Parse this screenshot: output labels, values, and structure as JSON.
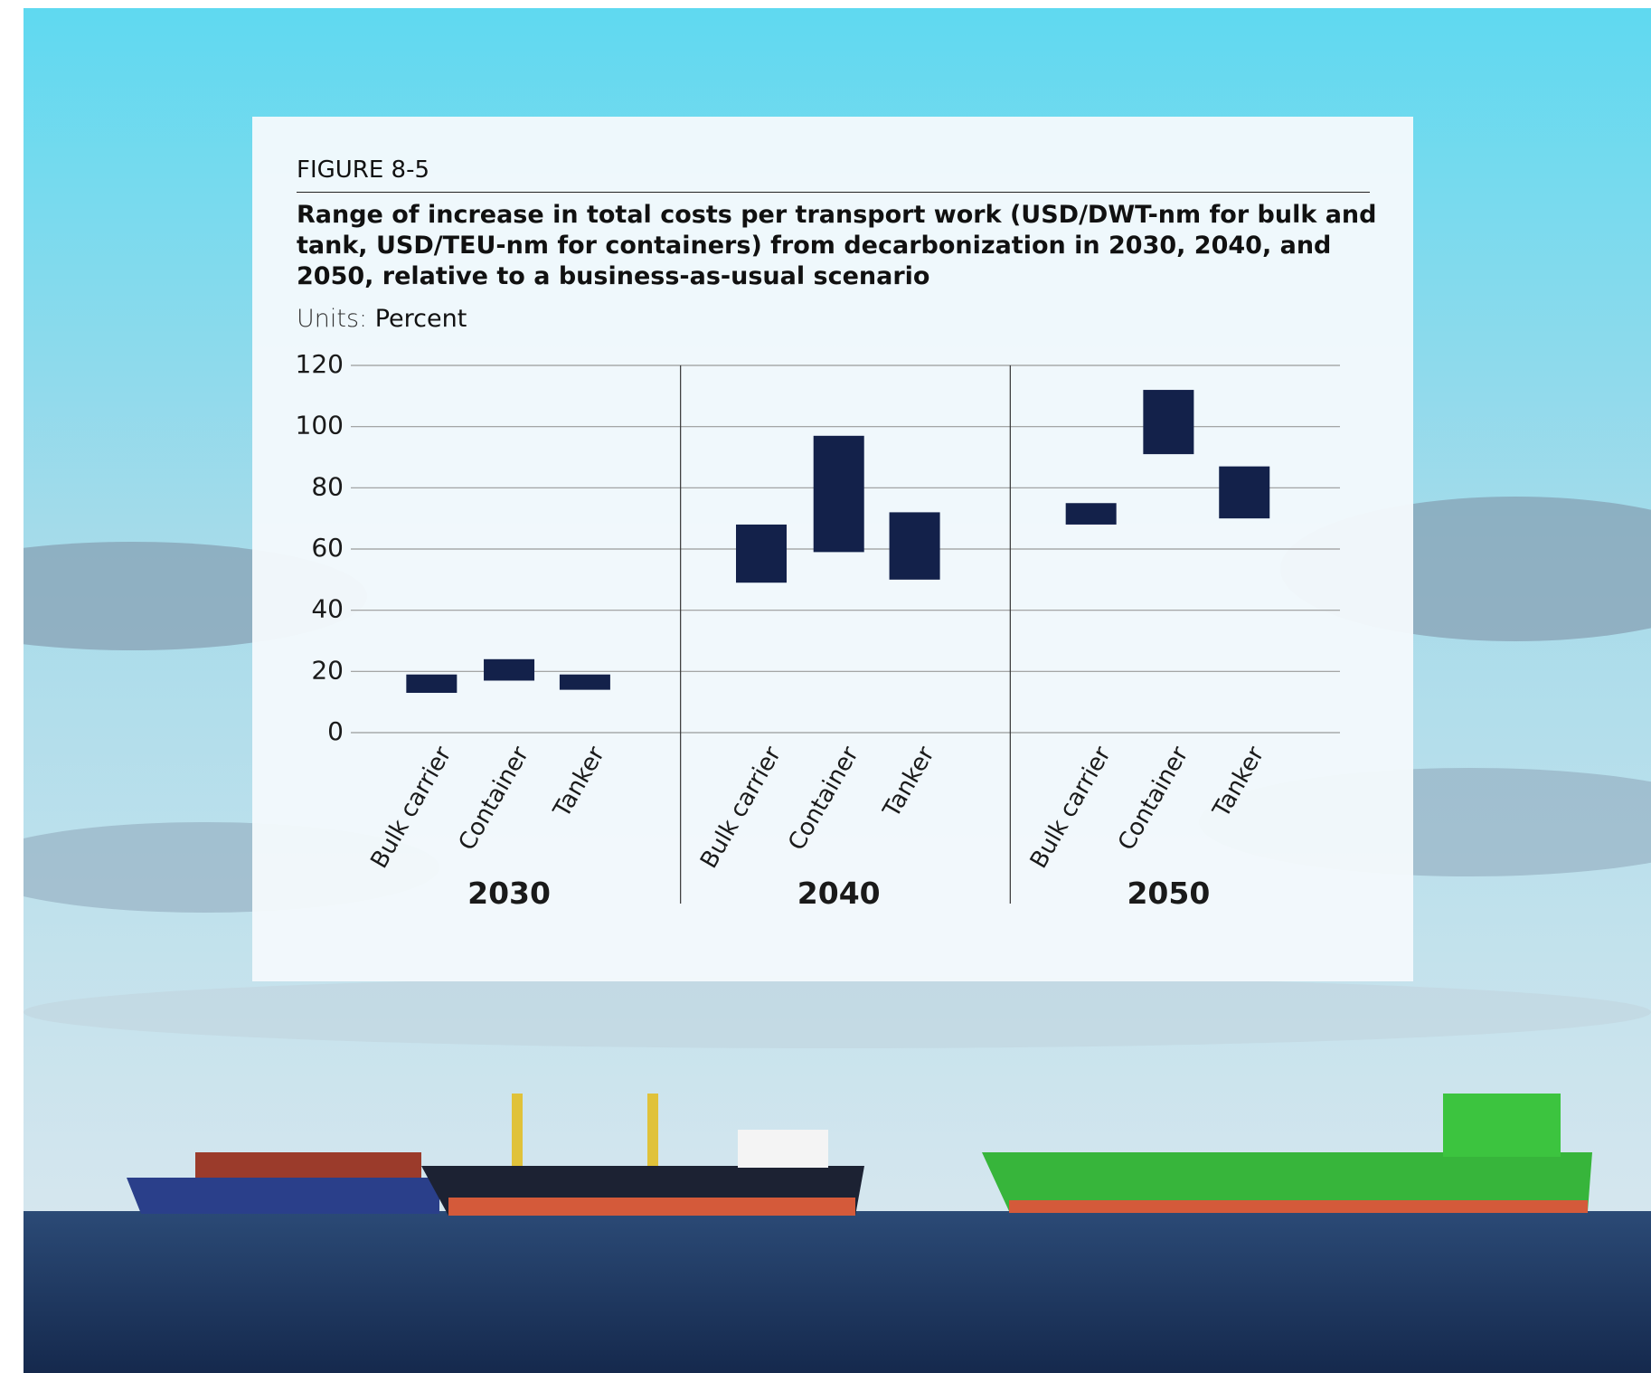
{
  "chart_data": {
    "type": "range-bar",
    "figure_label": "FIGURE 8-5",
    "title": "Range of increase in total costs per transport work (USD/DWT-nm for bulk and tank, USD/TEU-nm for containers) from decarbonization in 2030, 2040, and 2050, relative to a business-as-usual scenario",
    "units_label": "Units:",
    "units": "Percent",
    "color": "#13214a",
    "grid": true,
    "ylim": [
      0,
      120
    ],
    "yticks": [
      0,
      20,
      40,
      60,
      80,
      100,
      120
    ],
    "groups": [
      {
        "label": "2030",
        "categories": [
          "Bulk carrier",
          "Container",
          "Tanker"
        ],
        "low": [
          13,
          17,
          14
        ],
        "high": [
          19,
          24,
          19
        ]
      },
      {
        "label": "2040",
        "categories": [
          "Bulk carrier",
          "Container",
          "Tanker"
        ],
        "low": [
          49,
          59,
          50
        ],
        "high": [
          68,
          97,
          72
        ]
      },
      {
        "label": "2050",
        "categories": [
          "Bulk carrier",
          "Container",
          "Tanker"
        ],
        "low": [
          68,
          91,
          70
        ],
        "high": [
          75,
          112,
          87
        ]
      }
    ]
  }
}
